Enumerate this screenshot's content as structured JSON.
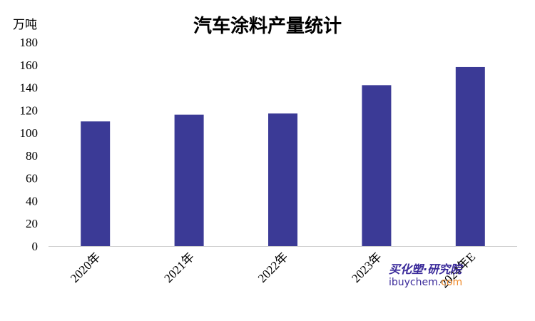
{
  "chart_data": {
    "type": "bar",
    "title": "汽车涂料产量统计",
    "ylabel": "万吨",
    "categories": [
      "2020年",
      "2021年",
      "2022年",
      "2023年",
      "2024年E"
    ],
    "values": [
      110,
      116,
      117,
      142,
      158
    ],
    "ylim": [
      0,
      180
    ],
    "yticks": [
      0,
      20,
      40,
      60,
      80,
      100,
      120,
      140,
      160,
      180
    ],
    "bar_color": "#3b3a96",
    "grid": false,
    "legend": "none"
  },
  "watermark": {
    "brand": "买化塑·研究院",
    "site_prefix": "ibuychem.",
    "site_suffix": "com"
  }
}
